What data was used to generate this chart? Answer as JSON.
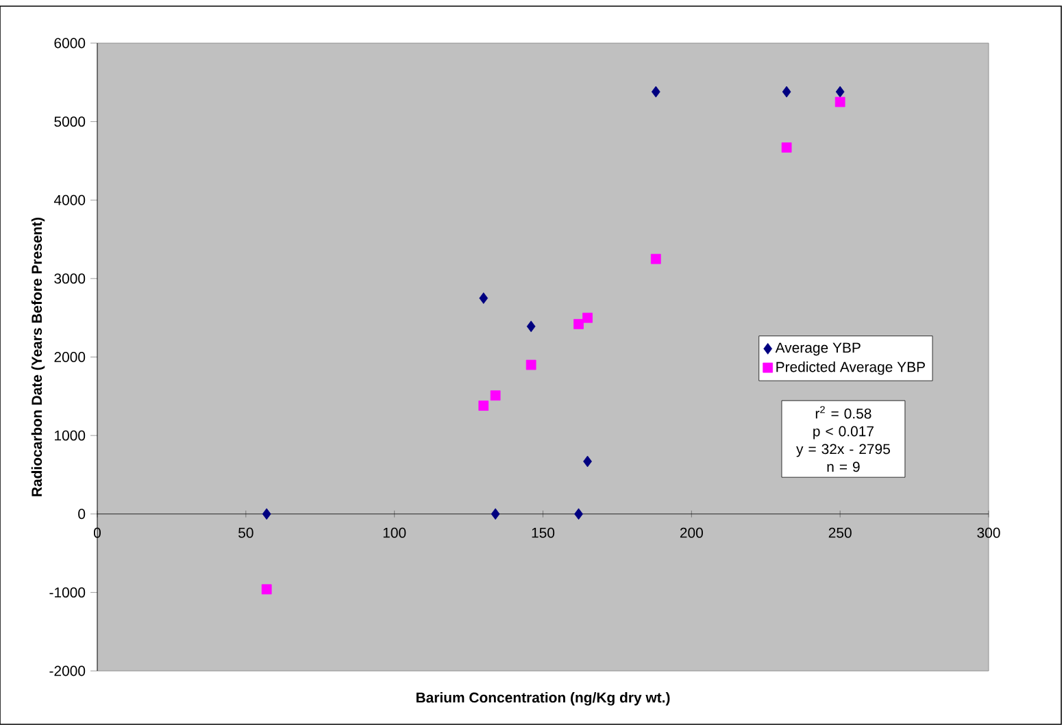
{
  "chart_data": {
    "type": "scatter",
    "xlabel": "Barium Concentration (ng/Kg dry wt.)",
    "ylabel": "Radiocarbon Date (Years Before Present)",
    "xlim": [
      0,
      300
    ],
    "xticks": [
      0,
      50,
      100,
      150,
      200,
      250,
      300
    ],
    "ylim": [
      -2000,
      6000
    ],
    "yticks": [
      -2000,
      -1000,
      0,
      1000,
      2000,
      3000,
      4000,
      5000,
      6000
    ],
    "grid": false,
    "legend": "right",
    "series": [
      {
        "name": "Average YBP",
        "color": "#000080",
        "marker": "diamond",
        "x": [
          57,
          130,
          134,
          146,
          162,
          165,
          188,
          232,
          250
        ],
        "values": [
          0,
          2750,
          0,
          2390,
          0,
          670,
          5380,
          5380,
          5380
        ]
      },
      {
        "name": "Predicted Average YBP",
        "color": "#ff00ff",
        "marker": "square",
        "x": [
          57,
          130,
          134,
          146,
          162,
          165,
          188,
          232,
          250
        ],
        "values": [
          -960,
          1380,
          1510,
          1900,
          2420,
          2500,
          3250,
          4670,
          5250
        ]
      }
    ],
    "annotations": [
      "r$^{2}$ = 0.58",
      "p < 0.017",
      "y = 32x - 2795",
      "n = 9"
    ]
  }
}
